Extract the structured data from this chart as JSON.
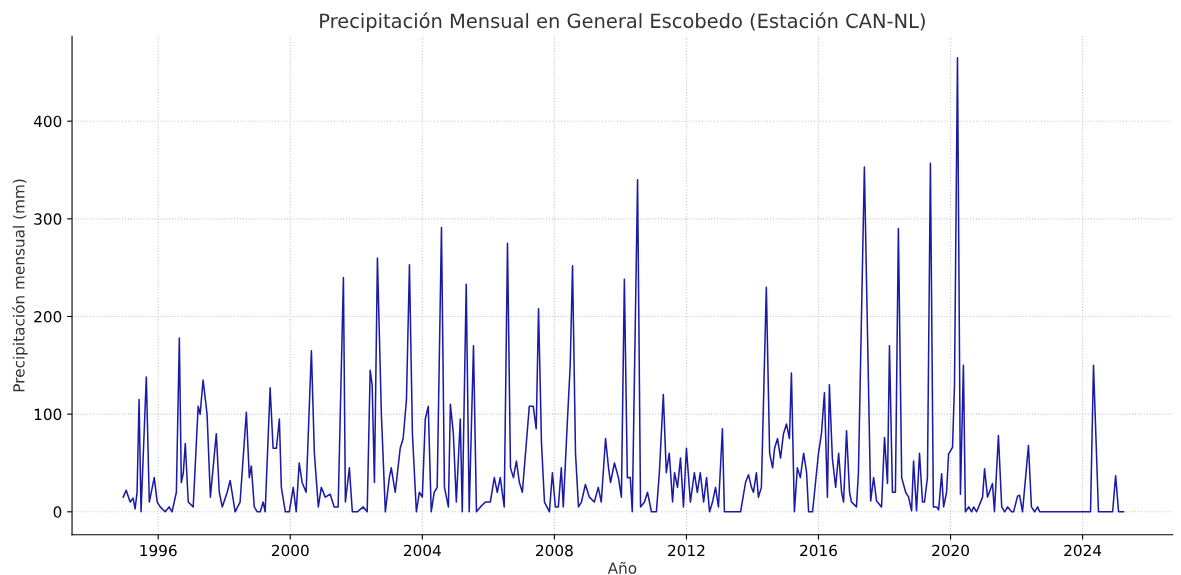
{
  "chart_data": {
    "type": "line",
    "title": "Precipitación Mensual en General Escobedo (Estación CAN-NL)",
    "xlabel": "Año",
    "ylabel": "Precipitación mensual (mm)",
    "xlim": [
      1993.39,
      2026.73
    ],
    "ylim": [
      -23.5,
      487
    ],
    "xticks": [
      1996,
      2000,
      2004,
      2008,
      2012,
      2016,
      2020,
      2024
    ],
    "yticks": [
      0,
      100,
      200,
      300,
      400
    ],
    "grid": true,
    "legend": false,
    "marker": "none",
    "line_style": "solid",
    "series": [
      {
        "color": "#1a1aa6",
        "x": [
          1994.94,
          1995.03,
          1995.15,
          1995.24,
          1995.3,
          1995.36,
          1995.42,
          1995.48,
          1995.64,
          1995.73,
          1995.88,
          1995.97,
          1996.06,
          1996.21,
          1996.33,
          1996.42,
          1996.55,
          1996.64,
          1996.7,
          1996.76,
          1996.82,
          1996.91,
          1997.06,
          1997.21,
          1997.27,
          1997.36,
          1997.48,
          1997.58,
          1997.76,
          1997.85,
          1997.94,
          1998.09,
          1998.18,
          1998.33,
          1998.48,
          1998.67,
          1998.76,
          1998.82,
          1998.91,
          1999.0,
          1999.09,
          1999.18,
          1999.24,
          1999.39,
          1999.48,
          1999.58,
          1999.67,
          1999.73,
          1999.85,
          1999.97,
          2000.09,
          2000.18,
          2000.27,
          2000.36,
          2000.48,
          2000.64,
          2000.73,
          2000.85,
          2000.94,
          2001.06,
          2001.21,
          2001.33,
          2001.45,
          2001.61,
          2001.67,
          2001.79,
          2001.88,
          2002.03,
          2002.21,
          2002.33,
          2002.42,
          2002.48,
          2002.55,
          2002.64,
          2002.76,
          2002.88,
          2003.0,
          2003.06,
          2003.18,
          2003.33,
          2003.42,
          2003.52,
          2003.61,
          2003.7,
          2003.82,
          2003.91,
          2004.0,
          2004.09,
          2004.18,
          2004.27,
          2004.36,
          2004.45,
          2004.58,
          2004.67,
          2004.79,
          2004.85,
          2004.94,
          2005.03,
          2005.15,
          2005.21,
          2005.33,
          2005.42,
          2005.55,
          2005.64,
          2005.76,
          2005.91,
          2006.06,
          2006.18,
          2006.27,
          2006.36,
          2006.48,
          2006.58,
          2006.67,
          2006.76,
          2006.85,
          2006.94,
          2007.03,
          2007.15,
          2007.24,
          2007.36,
          2007.45,
          2007.52,
          2007.61,
          2007.7,
          2007.85,
          2007.94,
          2008.03,
          2008.12,
          2008.21,
          2008.27,
          2008.39,
          2008.48,
          2008.55,
          2008.64,
          2008.73,
          2008.82,
          2008.94,
          2009.06,
          2009.21,
          2009.33,
          2009.42,
          2009.55,
          2009.64,
          2009.7,
          2009.82,
          2009.94,
          2010.03,
          2010.12,
          2010.21,
          2010.3,
          2010.36,
          2010.52,
          2010.61,
          2010.73,
          2010.82,
          2010.94,
          2011.09,
          2011.18,
          2011.3,
          2011.39,
          2011.48,
          2011.58,
          2011.64,
          2011.73,
          2011.82,
          2011.91,
          2012.0,
          2012.12,
          2012.24,
          2012.33,
          2012.42,
          2012.52,
          2012.61,
          2012.7,
          2012.79,
          2012.88,
          2012.97,
          2013.09,
          2013.15,
          2013.64,
          2013.79,
          2013.88,
          2013.97,
          2014.03,
          2014.12,
          2014.18,
          2014.27,
          2014.42,
          2014.52,
          2014.61,
          2014.67,
          2014.76,
          2014.85,
          2014.94,
          2015.03,
          2015.12,
          2015.18,
          2015.27,
          2015.36,
          2015.45,
          2015.55,
          2015.64,
          2015.7,
          2015.82,
          2015.91,
          2016.0,
          2016.09,
          2016.18,
          2016.27,
          2016.33,
          2016.42,
          2016.52,
          2016.61,
          2016.7,
          2016.76,
          2016.85,
          2016.94,
          2017.0,
          2017.15,
          2017.21,
          2017.39,
          2017.58,
          2017.67,
          2017.76,
          2017.91,
          2018.0,
          2018.09,
          2018.15,
          2018.24,
          2018.33,
          2018.42,
          2018.52,
          2018.64,
          2018.73,
          2018.82,
          2018.88,
          2018.97,
          2019.06,
          2019.15,
          2019.21,
          2019.3,
          2019.39,
          2019.48,
          2019.58,
          2019.64,
          2019.73,
          2019.79,
          2019.88,
          2019.94,
          2020.06,
          2020.12,
          2020.21,
          2020.3,
          2020.39,
          2020.45,
          2020.55,
          2020.64,
          2020.7,
          2020.79,
          2020.97,
          2021.03,
          2021.12,
          2021.27,
          2021.33,
          2021.45,
          2021.55,
          2021.64,
          2021.73,
          2021.85,
          2021.91,
          2022.03,
          2022.09,
          2022.18,
          2022.36,
          2022.45,
          2022.55,
          2022.64,
          2022.7,
          2024.24,
          2024.33,
          2024.48,
          2024.91,
          2025.0,
          2025.09,
          2025.24
        ],
        "values": [
          15,
          22,
          10,
          14,
          3,
          20,
          115,
          0,
          138,
          10,
          35,
          10,
          5,
          0,
          5,
          0,
          20,
          178,
          30,
          40,
          70,
          10,
          5,
          108,
          100,
          135,
          100,
          15,
          80,
          20,
          5,
          20,
          32,
          0,
          10,
          102,
          35,
          47,
          5,
          0,
          0,
          10,
          0,
          127,
          65,
          65,
          95,
          25,
          0,
          0,
          25,
          0,
          50,
          30,
          20,
          165,
          60,
          5,
          25,
          15,
          18,
          5,
          5,
          240,
          10,
          45,
          0,
          0,
          5,
          0,
          145,
          130,
          30,
          260,
          100,
          0,
          35,
          45,
          20,
          65,
          75,
          115,
          253,
          80,
          0,
          20,
          15,
          95,
          108,
          0,
          20,
          25,
          291,
          25,
          5,
          110,
          80,
          10,
          95,
          0,
          233,
          0,
          170,
          0,
          5,
          10,
          10,
          35,
          20,
          35,
          5,
          275,
          45,
          35,
          52,
          30,
          20,
          70,
          108,
          108,
          85,
          208,
          70,
          10,
          0,
          40,
          5,
          5,
          45,
          5,
          90,
          150,
          252,
          60,
          5,
          10,
          28,
          15,
          10,
          25,
          10,
          75,
          45,
          30,
          50,
          35,
          15,
          238,
          35,
          35,
          0,
          340,
          5,
          10,
          20,
          0,
          0,
          40,
          120,
          40,
          60,
          10,
          40,
          25,
          55,
          5,
          65,
          10,
          40,
          20,
          40,
          10,
          35,
          0,
          10,
          25,
          5,
          85,
          0,
          0,
          30,
          38,
          25,
          20,
          40,
          15,
          25,
          230,
          60,
          45,
          65,
          75,
          55,
          80,
          90,
          75,
          142,
          0,
          45,
          35,
          60,
          40,
          0,
          0,
          30,
          60,
          80,
          122,
          15,
          130,
          55,
          25,
          60,
          20,
          10,
          83,
          20,
          10,
          5,
          40,
          353,
          11,
          35,
          11,
          5,
          76,
          29,
          170,
          20,
          20,
          290,
          35,
          20,
          15,
          1,
          52,
          1,
          60,
          10,
          10,
          35,
          357,
          5,
          5,
          2,
          39,
          5,
          20,
          59,
          66,
          130,
          465,
          18,
          150,
          0,
          5,
          0,
          5,
          0,
          15,
          44,
          15,
          29,
          0,
          78,
          5,
          0,
          5,
          0,
          0,
          16,
          17,
          0,
          68,
          5,
          0,
          5,
          0,
          0,
          150,
          0,
          0,
          37,
          0,
          0
        ]
      }
    ]
  }
}
